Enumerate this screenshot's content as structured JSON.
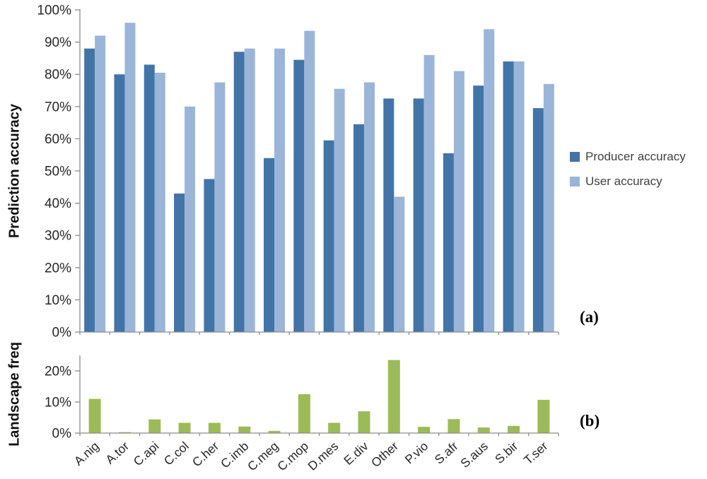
{
  "figure": {
    "panel_a_label": "(a)",
    "panel_b_label": "(b)"
  },
  "colors": {
    "producer": "#4274A7",
    "user": "#9AB5D8",
    "landscape": "#9BBB59",
    "axis": "#8C8C8C",
    "tick_text": "#262626"
  },
  "legend": {
    "position": "right",
    "items": [
      {
        "label": "Producer accuracy",
        "color": "#4274A7"
      },
      {
        "label": "User accuracy",
        "color": "#9AB5D8"
      }
    ]
  },
  "chart_data": [
    {
      "type": "bar",
      "panel": "a",
      "title": "",
      "xlabel": "",
      "ylabel": "Prediction accuracy",
      "ylim": [
        0,
        100
      ],
      "ytick_step": 10,
      "ytick_labels": [
        "0%",
        "10%",
        "20%",
        "30%",
        "40%",
        "50%",
        "60%",
        "70%",
        "80%",
        "90%",
        "100%"
      ],
      "grid": false,
      "legend_position": "right",
      "categories": [
        "A.nig",
        "A.tor",
        "C.api",
        "C.col",
        "C.her",
        "C.imb",
        "C.meg",
        "C.mop",
        "D.mes",
        "E.div",
        "Other",
        "P.vio",
        "S.afr",
        "S.aus",
        "S.bir",
        "T.ser"
      ],
      "series": [
        {
          "name": "Producer accuracy",
          "color": "#4274A7",
          "values": [
            88,
            80,
            83,
            43,
            47.5,
            87,
            54,
            84.5,
            59.5,
            64.5,
            72.5,
            72.5,
            55.5,
            76.5,
            84,
            69.5
          ]
        },
        {
          "name": "User accuracy",
          "color": "#9AB5D8",
          "values": [
            92,
            96,
            80.5,
            70,
            77.5,
            88,
            88,
            93.5,
            75.5,
            77.5,
            42,
            86,
            81,
            94,
            84,
            77
          ]
        }
      ]
    },
    {
      "type": "bar",
      "panel": "b",
      "title": "",
      "xlabel": "",
      "ylabel": "Landscape freq",
      "ylim": [
        0,
        25
      ],
      "yticks": [
        0,
        10,
        20
      ],
      "ytick_labels": [
        "0%",
        "10%",
        "20%"
      ],
      "grid": false,
      "categories": [
        "A.nig",
        "A.tor",
        "C.api",
        "C.col",
        "C.her",
        "C.imb",
        "C.meg",
        "C.mop",
        "D.mes",
        "E.div",
        "Other",
        "P.vio",
        "S.afr",
        "S.aus",
        "S.bir",
        "T.ser"
      ],
      "values": [
        11,
        0.3,
        4.4,
        3.3,
        3.3,
        2.1,
        0.7,
        12.5,
        3.3,
        7,
        23.5,
        2,
        4.5,
        1.8,
        2.3,
        10.7
      ]
    }
  ]
}
